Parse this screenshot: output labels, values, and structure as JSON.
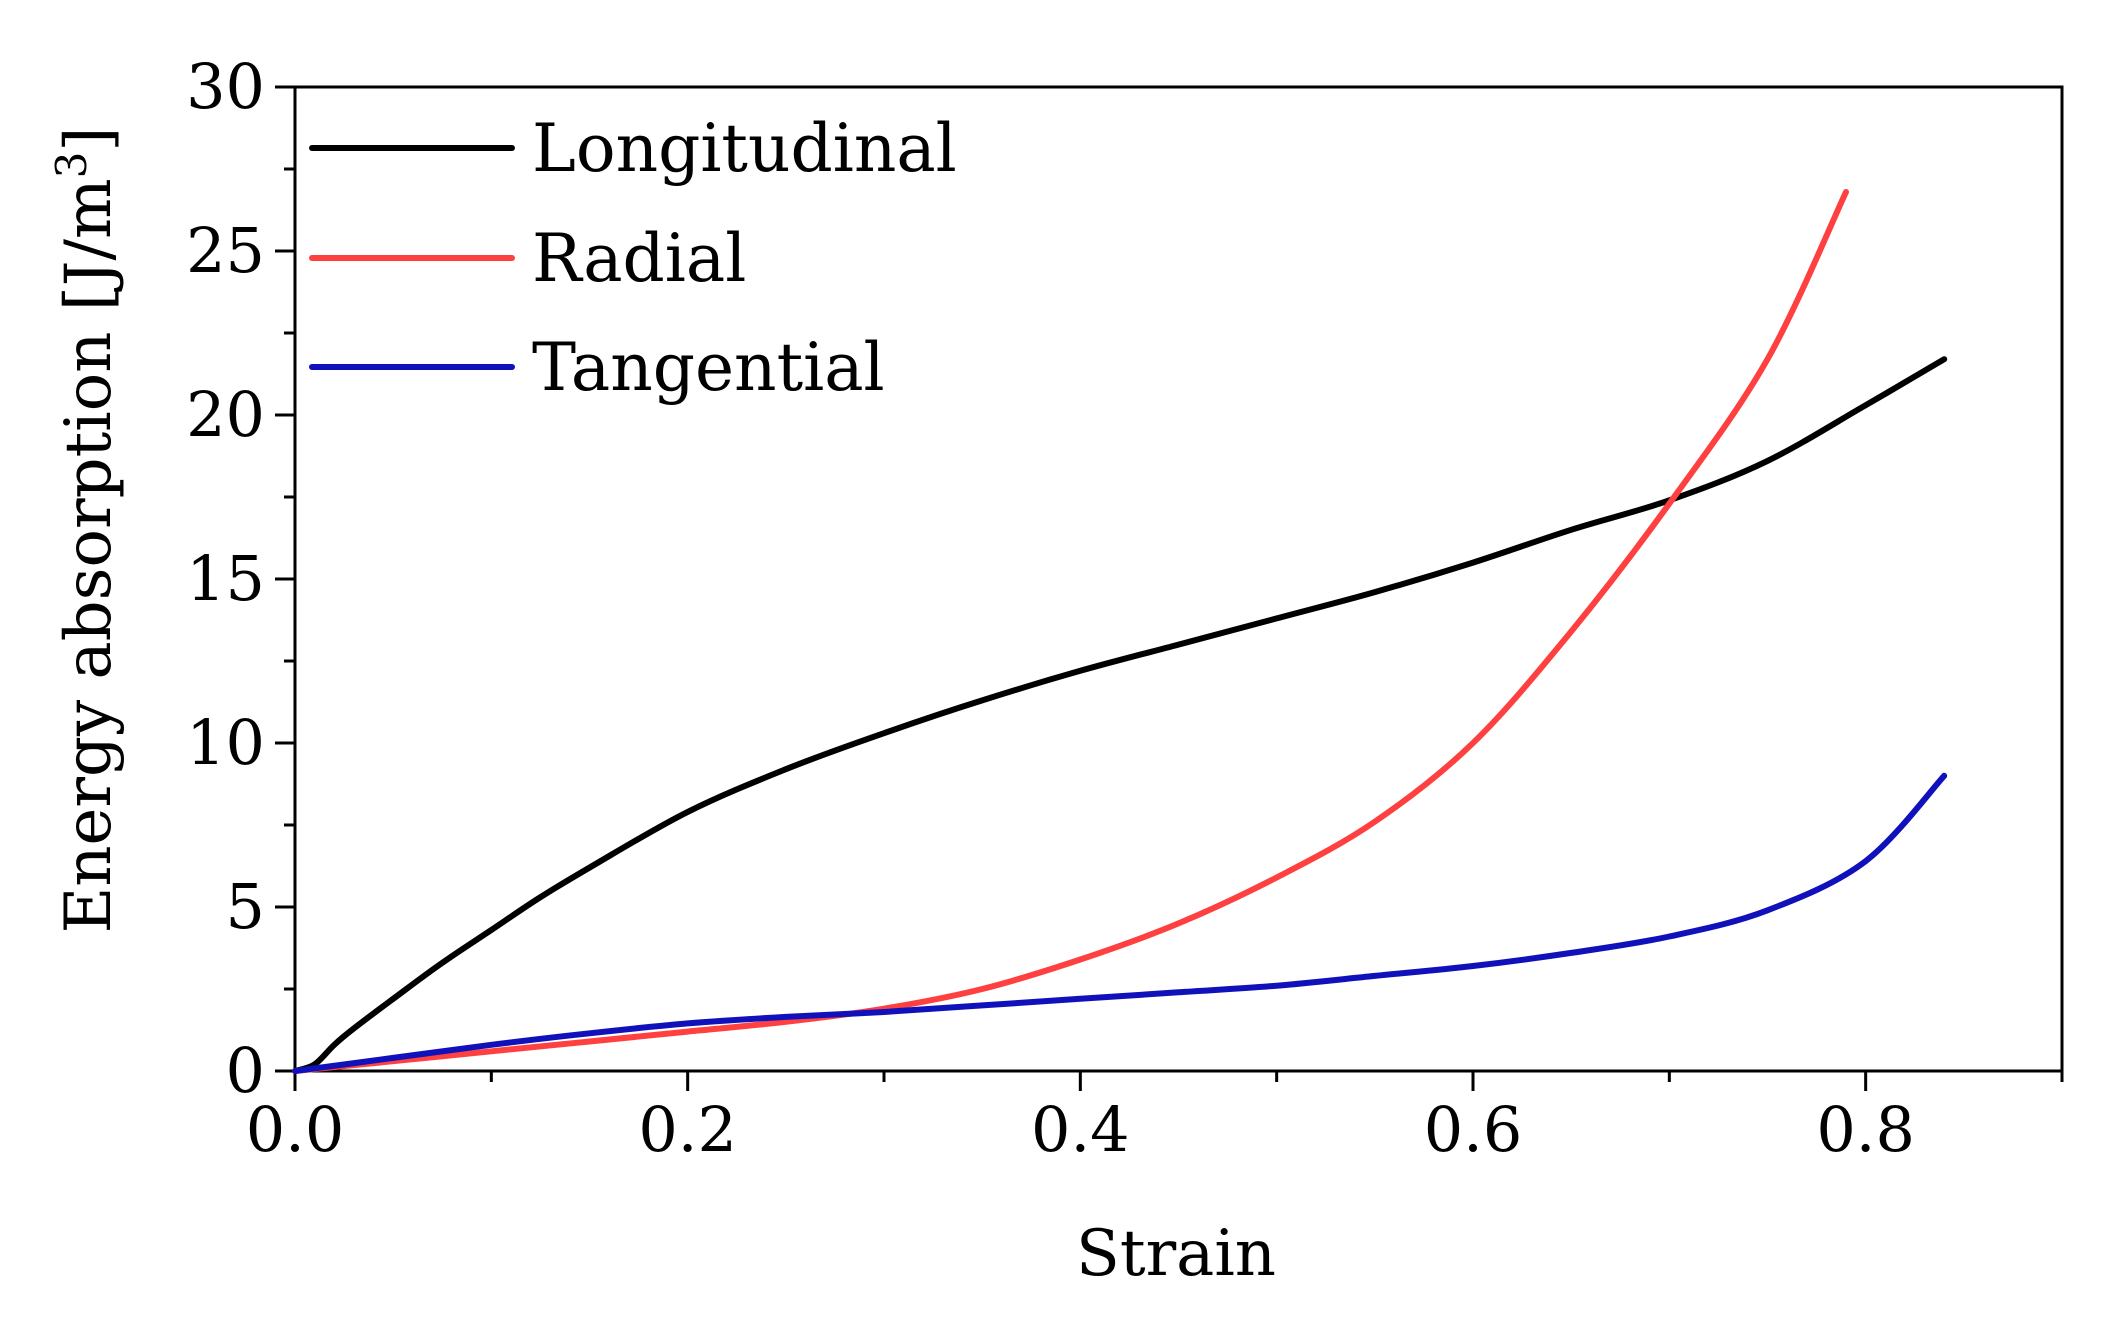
{
  "chart_data": {
    "type": "line",
    "title": "",
    "xlabel": "Strain",
    "ylabel_main": "Energy absorption [J/m",
    "ylabel_sup": "3",
    "ylabel_end": "]",
    "xlim": [
      0,
      0.9
    ],
    "ylim": [
      0,
      30
    ],
    "xticks": [
      0.0,
      0.2,
      0.4,
      0.6,
      0.8
    ],
    "xtick_labels": [
      "0.0",
      "0.2",
      "0.4",
      "0.6",
      "0.8"
    ],
    "xminor": [
      0.1,
      0.3,
      0.5,
      0.7,
      0.9
    ],
    "yticks": [
      0,
      5,
      10,
      15,
      20,
      25,
      30
    ],
    "ytick_labels": [
      "0",
      "5",
      "10",
      "15",
      "20",
      "25",
      "30"
    ],
    "yminor": [
      2.5,
      7.5,
      12.5,
      17.5,
      22.5,
      27.5
    ],
    "grid": false,
    "legend_position": "top-left",
    "series": [
      {
        "name": "Longitudinal",
        "color": "#000000",
        "x": [
          0,
          0.01,
          0.02,
          0.03,
          0.05,
          0.075,
          0.1,
          0.125,
          0.15,
          0.2,
          0.25,
          0.3,
          0.35,
          0.4,
          0.45,
          0.5,
          0.55,
          0.6,
          0.65,
          0.7,
          0.75,
          0.8,
          0.84
        ],
        "y": [
          0,
          0.2,
          0.8,
          1.3,
          2.2,
          3.3,
          4.3,
          5.3,
          6.2,
          7.9,
          9.2,
          10.3,
          11.3,
          12.2,
          13.0,
          13.8,
          14.6,
          15.5,
          16.5,
          17.4,
          18.6,
          20.3,
          21.7
        ]
      },
      {
        "name": "Radial",
        "color": "#ff4040",
        "x": [
          0,
          0.05,
          0.1,
          0.15,
          0.2,
          0.25,
          0.3,
          0.35,
          0.4,
          0.45,
          0.5,
          0.55,
          0.6,
          0.65,
          0.7,
          0.75,
          0.79
        ],
        "y": [
          0,
          0.3,
          0.6,
          0.9,
          1.2,
          1.5,
          1.9,
          2.5,
          3.4,
          4.5,
          5.9,
          7.6,
          10.0,
          13.4,
          17.3,
          21.7,
          26.8
        ]
      },
      {
        "name": "Tangential",
        "color": "#1111bb",
        "x": [
          0,
          0.05,
          0.1,
          0.15,
          0.2,
          0.25,
          0.3,
          0.35,
          0.4,
          0.45,
          0.5,
          0.55,
          0.6,
          0.65,
          0.7,
          0.75,
          0.8,
          0.84
        ],
        "y": [
          0,
          0.4,
          0.8,
          1.15,
          1.45,
          1.65,
          1.8,
          2.0,
          2.2,
          2.4,
          2.6,
          2.9,
          3.2,
          3.6,
          4.1,
          4.9,
          6.4,
          9.0
        ]
      }
    ]
  }
}
